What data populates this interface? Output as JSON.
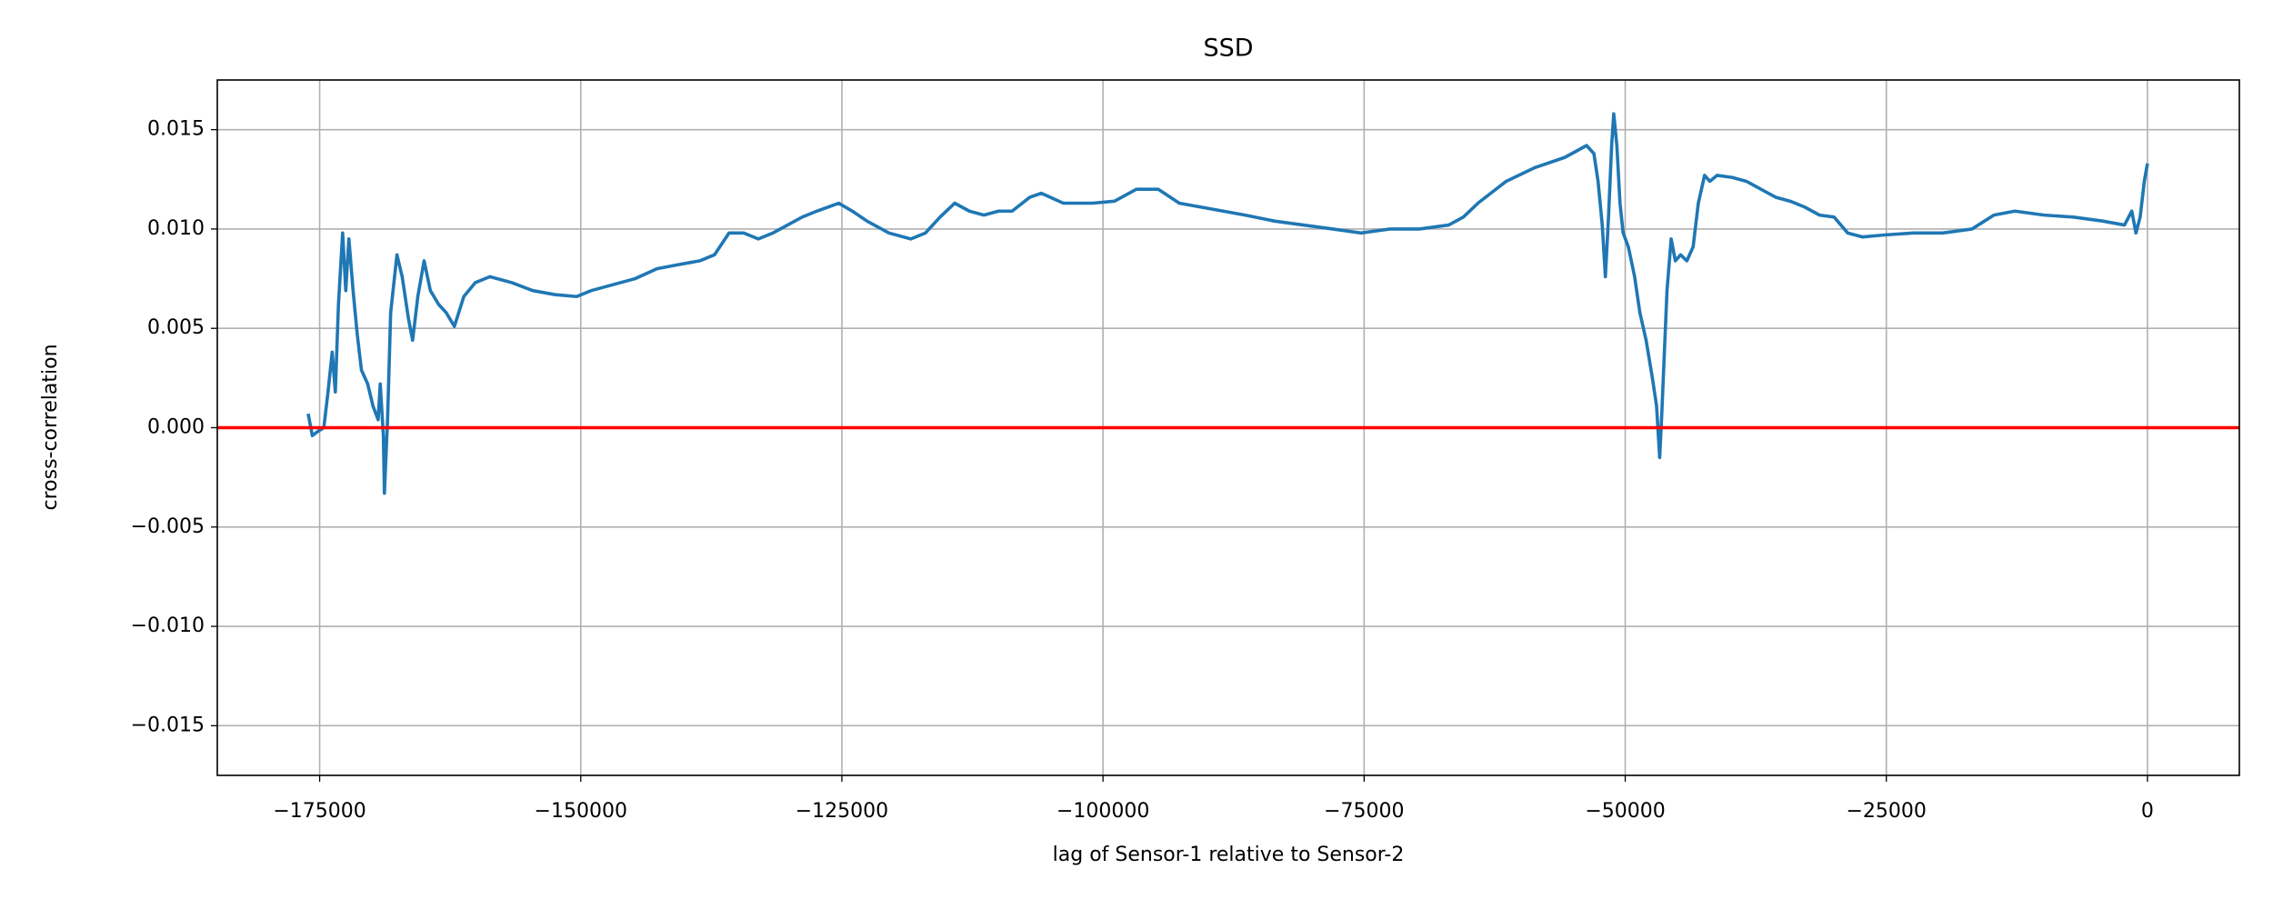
{
  "chart_data": {
    "type": "line",
    "title": "SSD",
    "x_label": "lag of Sensor-1 relative to Sensor-2",
    "y_label": "cross-correlation",
    "xlim": [
      -184800,
      8800
    ],
    "ylim": [
      -0.0175,
      0.0175
    ],
    "xticks": [
      {
        "value": -175000,
        "label": "−175000"
      },
      {
        "value": -150000,
        "label": "−150000"
      },
      {
        "value": -125000,
        "label": "−125000"
      },
      {
        "value": -100000,
        "label": "−100000"
      },
      {
        "value": -75000,
        "label": "−75000"
      },
      {
        "value": -50000,
        "label": "−50000"
      },
      {
        "value": -25000,
        "label": "−25000"
      },
      0
    ],
    "yticks": [
      {
        "value": -0.015,
        "label": "−0.015"
      },
      {
        "value": -0.01,
        "label": "−0.010"
      },
      {
        "value": -0.005,
        "label": "−0.005"
      },
      {
        "value": 0,
        "label": "0.000"
      },
      0.005,
      {
        "value": 0.01,
        "label": "0.010"
      },
      0.015
    ],
    "grid": true,
    "hline": {
      "value": 0,
      "color": "#ff0000"
    },
    "x": [
      -176100,
      -175700,
      -175200,
      -174600,
      -174200,
      -173800,
      -173500,
      -173200,
      -172800,
      -172500,
      -172200,
      -171800,
      -171400,
      -171000,
      -170400,
      -169900,
      -169400,
      -169200,
      -168900,
      -168800,
      -168500,
      -168200,
      -167600,
      -167100,
      -166500,
      -166100,
      -165600,
      -165000,
      -164400,
      -163600,
      -162900,
      -162100,
      -161200,
      -160100,
      -158700,
      -156600,
      -154600,
      -152500,
      -150400,
      -149000,
      -147600,
      -146200,
      -144800,
      -142700,
      -140700,
      -138600,
      -137200,
      -135800,
      -134400,
      -133000,
      -131600,
      -130200,
      -128800,
      -127400,
      -125300,
      -124000,
      -122600,
      -120500,
      -118400,
      -117000,
      -115600,
      -114200,
      -112800,
      -111400,
      -110000,
      -108700,
      -107000,
      -105900,
      -103800,
      -102400,
      -101000,
      -98900,
      -96800,
      -94700,
      -92700,
      -90600,
      -88500,
      -86400,
      -83600,
      -80800,
      -78000,
      -75300,
      -72500,
      -69700,
      -66900,
      -65500,
      -64100,
      -61400,
      -58600,
      -55800,
      -53700,
      -53000,
      -52600,
      -52200,
      -51900,
      -51600,
      -51300,
      -51100,
      -50800,
      -50500,
      -50200,
      -49700,
      -49100,
      -48600,
      -48000,
      -47400,
      -47000,
      -46700,
      -46500,
      -46000,
      -45600,
      -45200,
      -44700,
      -44100,
      -43500,
      -43000,
      -42400,
      -41900,
      -41200,
      -39800,
      -38400,
      -37000,
      -35600,
      -34200,
      -32800,
      -31400,
      -30000,
      -28700,
      -27300,
      -25200,
      -22400,
      -19600,
      -16800,
      -14700,
      -12700,
      -9900,
      -7100,
      -4300,
      -2200,
      -1500,
      -1100,
      -700,
      -300,
      0
    ],
    "series": [
      {
        "color": "#1f77b4",
        "values": [
          0.0007,
          -0.0004,
          -0.0002,
          0,
          0.0018,
          0.0038,
          0.0018,
          0.0062,
          0.0098,
          0.0069,
          0.0095,
          0.0069,
          0.0047,
          0.0029,
          0.0022,
          0.0011,
          0.0004,
          0.0022,
          -0.0004,
          -0.0033,
          0.0004,
          0.0058,
          0.0087,
          0.0076,
          0.0055,
          0.0044,
          0.0066,
          0.0084,
          0.0069,
          0.0062,
          0.0058,
          0.0051,
          0.0066,
          0.0073,
          0.0076,
          0.0073,
          0.0069,
          0.0067,
          0.0066,
          0.0069,
          0.0071,
          0.0073,
          0.0075,
          0.008,
          0.0082,
          0.0084,
          0.0087,
          0.0098,
          0.0098,
          0.0095,
          0.0098,
          0.0102,
          0.0106,
          0.0109,
          0.0113,
          0.0109,
          0.0104,
          0.0098,
          0.0095,
          0.0098,
          0.0106,
          0.0113,
          0.0109,
          0.0107,
          0.0109,
          0.0109,
          0.0116,
          0.0118,
          0.0113,
          0.0113,
          0.0113,
          0.0114,
          0.012,
          0.012,
          0.0113,
          0.0111,
          0.0109,
          0.0107,
          0.0104,
          0.0102,
          0.01,
          0.0098,
          0.01,
          0.01,
          0.0102,
          0.0106,
          0.0113,
          0.0124,
          0.0131,
          0.0136,
          0.0142,
          0.0138,
          0.0124,
          0.0102,
          0.0076,
          0.0106,
          0.0142,
          0.0158,
          0.0142,
          0.0113,
          0.0098,
          0.0091,
          0.0076,
          0.0058,
          0.0044,
          0.0025,
          0.0011,
          -0.0015,
          0.0007,
          0.0069,
          0.0095,
          0.0084,
          0.0087,
          0.0084,
          0.0091,
          0.0113,
          0.0127,
          0.0124,
          0.0127,
          0.0126,
          0.0124,
          0.012,
          0.0116,
          0.0114,
          0.0111,
          0.0107,
          0.0106,
          0.0098,
          0.0096,
          0.0097,
          0.0098,
          0.0098,
          0.01,
          0.0107,
          0.0109,
          0.0107,
          0.0106,
          0.0104,
          0.0102,
          0.0109,
          0.0098,
          0.0106,
          0.0124,
          0.0133
        ]
      }
    ]
  }
}
